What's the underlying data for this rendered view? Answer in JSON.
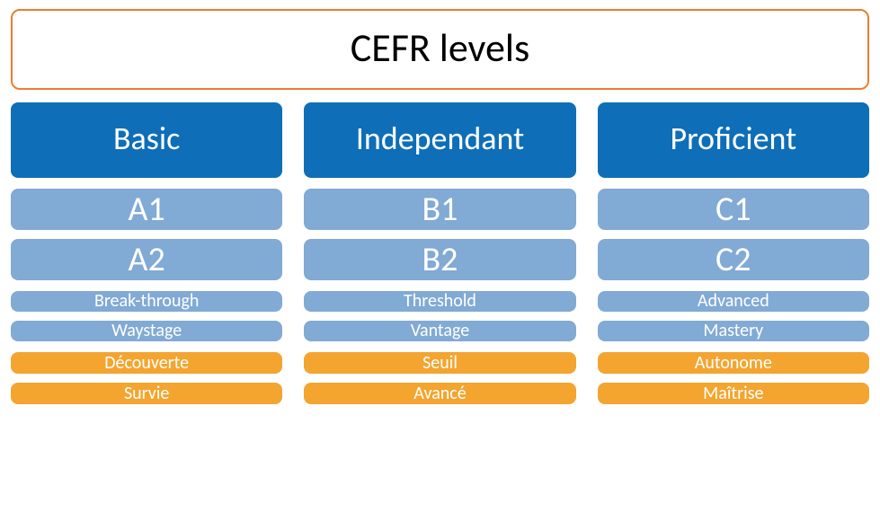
{
  "diagram": {
    "type": "infographic",
    "background_color": "#ffffff",
    "title": {
      "text": "CEFR levels",
      "border_color": "#ed7d31",
      "text_color": "#000000",
      "fontsize": 44,
      "border_radius": 10
    },
    "colors": {
      "category_bg": "#0e6eb8",
      "level_bg": "#81aad4",
      "french_bg": "#f3a530",
      "text": "#ffffff"
    },
    "groups": [
      {
        "category": "Basic",
        "levels": [
          {
            "code": "A1",
            "english": "Break-through",
            "french": "Découverte"
          },
          {
            "code": "A2",
            "english": "Waystage",
            "french": "Survie"
          }
        ]
      },
      {
        "category": "Independant",
        "levels": [
          {
            "code": "B1",
            "english": "Threshold",
            "french": "Seuil"
          },
          {
            "code": "B2",
            "english": "Vantage",
            "french": "Avancé"
          }
        ]
      },
      {
        "category": "Proficient",
        "levels": [
          {
            "code": "C1",
            "english": "Advanced",
            "french": "Autonome"
          },
          {
            "code": "C2",
            "english": "Mastery",
            "french": "Maîtrise"
          }
        ]
      }
    ],
    "typography": {
      "category_fontsize": 36,
      "code_fontsize": 38,
      "label_fontsize": 20
    },
    "layout": {
      "group_gap": 24,
      "cell_gap": 10,
      "row_gap": 12,
      "border_radius": 8
    }
  }
}
